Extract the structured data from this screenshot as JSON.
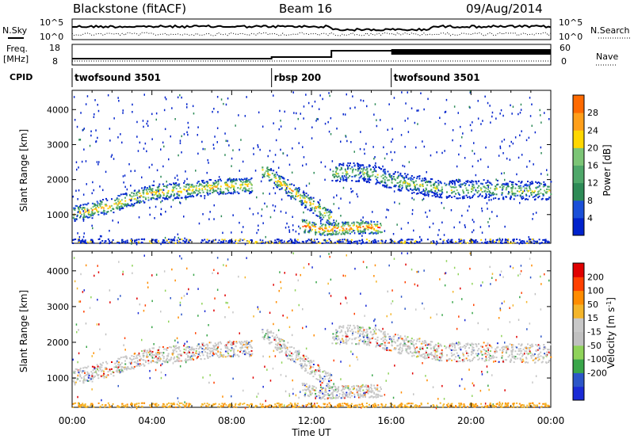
{
  "header": {
    "station": "Blackstone (fitACF)",
    "beam": "Beam 16",
    "date": "09/Aug/2014"
  },
  "sky_panel": {
    "left_label": "N.Sky",
    "right_label": "N.Search",
    "left_ticks": [
      "10^5",
      "10^0"
    ],
    "right_ticks": [
      "10^5",
      "10^0"
    ]
  },
  "freq_panel": {
    "left_label_line1": "Freq.",
    "left_label_line2": "[MHz]",
    "right_label": "Nave",
    "left_ticks": [
      "18",
      "8"
    ],
    "right_ticks": [
      "60",
      "0"
    ]
  },
  "cpid_panel": {
    "label": "CPID",
    "segments": [
      {
        "name": "twofsound 3501",
        "start_hour": 0
      },
      {
        "name": "rbsp 200",
        "start_hour": 10
      },
      {
        "name": "twofsound 3501",
        "start_hour": 16
      }
    ]
  },
  "colors": {
    "power": [
      "#0022cc",
      "#1a4fd8",
      "#2e8b57",
      "#4fa86a",
      "#7cc576",
      "#ffd700",
      "#ff9f1a",
      "#ff6a00",
      "#ff2a00",
      "#e00000"
    ],
    "velocity": [
      "#1a2bd6",
      "#2c56c8",
      "#3aa64a",
      "#8fd35a",
      "#c0c0c0",
      "#c8c8c8",
      "#f4b52a",
      "#ff8c00",
      "#ff4000",
      "#e00000"
    ],
    "ground_scatter": "#c8c8c8"
  },
  "chart_data": [
    {
      "type": "heatmap",
      "title": "Power",
      "xlabel": "Time UT",
      "ylabel": "Slant Range [km]",
      "xlim": [
        0,
        24
      ],
      "ylim": [
        180,
        4550
      ],
      "x_tick_labels": [
        "00:00",
        "04:00",
        "08:00",
        "12:00",
        "16:00",
        "20:00",
        "00:00"
      ],
      "y_tick_labels": [
        "1000",
        "2000",
        "3000",
        "4000"
      ],
      "colorbar": {
        "label": "Power [dB]",
        "range": [
          0,
          32
        ],
        "tick_labels": [
          "4",
          "8",
          "12",
          "16",
          "20",
          "24",
          "28"
        ]
      },
      "bands": [
        {
          "t": [
            0,
            1,
            2,
            3,
            4,
            5,
            6,
            7,
            8,
            9
          ],
          "range": [
            1050,
            1150,
            1300,
            1500,
            1650,
            1700,
            1750,
            1800,
            1850,
            1850
          ],
          "width_km": 250,
          "power_db": 20
        },
        {
          "t": [
            9.5,
            10.5,
            11.5,
            12.5,
            13
          ],
          "range": [
            2300,
            1900,
            1500,
            1100,
            900
          ],
          "width_km": 250,
          "power_db": 20
        },
        {
          "t": [
            11.5,
            12.5,
            13.5,
            14.5,
            15.5
          ],
          "range": [
            700,
            600,
            620,
            660,
            650
          ],
          "width_km": 200,
          "power_db": 24
        },
        {
          "t": [
            13,
            14,
            15,
            16,
            17,
            18,
            19,
            20,
            21,
            22,
            23,
            24
          ],
          "range": [
            2200,
            2250,
            2200,
            2000,
            1900,
            1800,
            1750,
            1750,
            1750,
            1700,
            1700,
            1700
          ],
          "width_km": 300,
          "power_db": 16
        }
      ]
    },
    {
      "type": "heatmap",
      "title": "Velocity",
      "xlabel": "Time UT",
      "ylabel": "Slant Range [km]",
      "xlim": [
        0,
        24
      ],
      "ylim": [
        180,
        4550
      ],
      "x_tick_labels": [
        "00:00",
        "04:00",
        "08:00",
        "12:00",
        "16:00",
        "20:00",
        "00:00"
      ],
      "y_tick_labels": [
        "1000",
        "2000",
        "3000",
        "4000"
      ],
      "colorbar": {
        "label": "Velocity [m s^-1]",
        "range": [
          -250,
          250
        ],
        "tick_labels": [
          "200",
          "100",
          "50",
          "15",
          "-15",
          "-50",
          "-100",
          "-200"
        ]
      }
    }
  ],
  "xaxis_title": "Time UT"
}
